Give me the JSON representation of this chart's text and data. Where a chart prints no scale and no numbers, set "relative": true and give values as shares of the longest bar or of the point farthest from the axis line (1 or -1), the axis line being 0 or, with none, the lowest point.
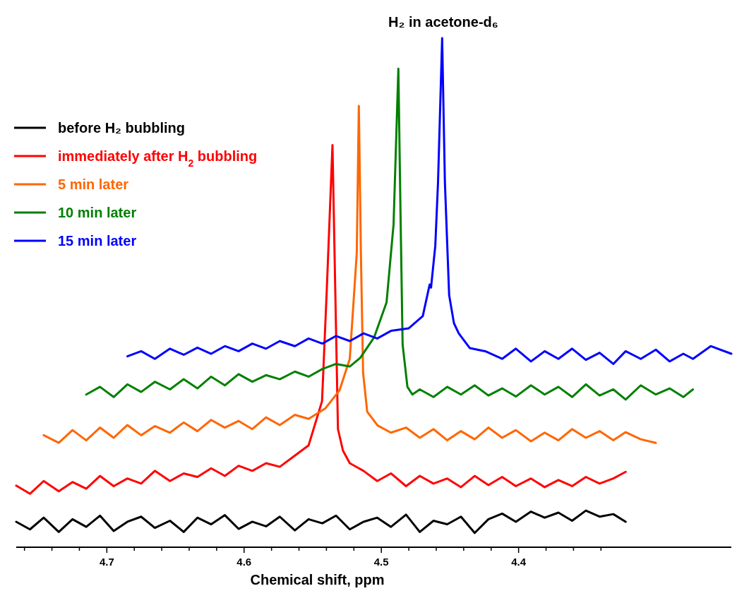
{
  "chart_data": {
    "type": "line",
    "title": "H₂ in acetone-d₆",
    "xlabel": "Chemical shift, ppm",
    "relative": true,
    "legend": "top left",
    "xlim": [
      4.766,
      4.245
    ],
    "xticks": [
      {
        "value": 4.76,
        "label": null
      },
      {
        "value": 4.74,
        "label": null
      },
      {
        "value": 4.72,
        "label": null
      },
      4.7,
      {
        "value": 4.68,
        "label": null
      },
      {
        "value": 4.66,
        "label": null
      },
      {
        "value": 4.64,
        "label": null
      },
      {
        "value": 4.62,
        "label": null
      },
      4.6,
      {
        "value": 4.58,
        "label": null
      },
      {
        "value": 4.56,
        "label": null
      },
      {
        "value": 4.54,
        "label": null
      },
      {
        "value": 4.52,
        "label": null
      },
      4.5,
      {
        "value": 4.48,
        "label": null
      },
      {
        "value": 4.46,
        "label": null
      },
      {
        "value": 4.44,
        "label": null
      },
      {
        "value": 4.42,
        "label": null
      },
      4.4,
      {
        "value": 4.38,
        "label": null
      },
      {
        "value": 4.36,
        "label": null
      },
      {
        "value": 4.34,
        "label": null
      }
    ],
    "series": [
      {
        "name": "before H₂ bubbling",
        "color": "#000000",
        "x": [
          4.766,
          4.756,
          4.746,
          4.735,
          4.725,
          4.715,
          4.705,
          4.695,
          4.685,
          4.675,
          4.665,
          4.654,
          4.644,
          4.634,
          4.624,
          4.614,
          4.604,
          4.594,
          4.584,
          4.574,
          4.563,
          4.553,
          4.543,
          4.533,
          4.523,
          4.513,
          4.503,
          4.493,
          4.482,
          4.472,
          4.462,
          4.452,
          4.442,
          4.432,
          4.422,
          4.412,
          4.402,
          4.391,
          4.381,
          4.371,
          4.361,
          4.351,
          4.341,
          4.331,
          4.322
        ],
        "values": [
          0.05,
          0.035,
          0.058,
          0.03,
          0.055,
          0.04,
          0.062,
          0.032,
          0.05,
          0.06,
          0.038,
          0.052,
          0.03,
          0.058,
          0.045,
          0.063,
          0.036,
          0.05,
          0.041,
          0.06,
          0.033,
          0.055,
          0.047,
          0.062,
          0.035,
          0.05,
          0.058,
          0.04,
          0.064,
          0.03,
          0.052,
          0.045,
          0.06,
          0.028,
          0.055,
          0.066,
          0.05,
          0.07,
          0.058,
          0.068,
          0.052,
          0.072,
          0.06,
          0.065,
          0.05
        ]
      },
      {
        "name": "immediately after H$_{2}$ bubbling",
        "color": "#ff0000",
        "x": [
          4.766,
          4.756,
          4.746,
          4.735,
          4.725,
          4.715,
          4.705,
          4.695,
          4.685,
          4.675,
          4.665,
          4.654,
          4.644,
          4.634,
          4.624,
          4.614,
          4.604,
          4.594,
          4.584,
          4.574,
          4.563,
          4.553,
          4.5432,
          4.5397,
          4.5356,
          4.5336,
          4.5316,
          4.528,
          4.523,
          4.513,
          4.503,
          4.493,
          4.482,
          4.472,
          4.462,
          4.452,
          4.442,
          4.432,
          4.422,
          4.412,
          4.402,
          4.391,
          4.381,
          4.371,
          4.361,
          4.351,
          4.341,
          4.331,
          4.322
        ],
        "values": [
          0.121,
          0.105,
          0.13,
          0.11,
          0.128,
          0.115,
          0.14,
          0.12,
          0.135,
          0.125,
          0.15,
          0.13,
          0.145,
          0.138,
          0.155,
          0.14,
          0.16,
          0.15,
          0.165,
          0.158,
          0.18,
          0.2,
          0.287,
          0.509,
          0.79,
          0.509,
          0.232,
          0.19,
          0.165,
          0.15,
          0.13,
          0.145,
          0.12,
          0.14,
          0.125,
          0.135,
          0.118,
          0.14,
          0.122,
          0.138,
          0.12,
          0.135,
          0.118,
          0.132,
          0.12,
          0.138,
          0.125,
          0.135,
          0.148
        ]
      },
      {
        "name": "5 min later",
        "color": "#ff6600",
        "x": [
          4.746,
          4.735,
          4.725,
          4.715,
          4.705,
          4.695,
          4.685,
          4.675,
          4.665,
          4.654,
          4.644,
          4.634,
          4.624,
          4.614,
          4.604,
          4.594,
          4.584,
          4.574,
          4.563,
          4.553,
          4.5407,
          4.5305,
          4.523,
          4.5179,
          4.5164,
          4.5149,
          4.5133,
          4.5103,
          4.5027,
          4.493,
          4.482,
          4.472,
          4.462,
          4.452,
          4.442,
          4.432,
          4.422,
          4.412,
          4.402,
          4.391,
          4.381,
          4.371,
          4.361,
          4.351,
          4.341,
          4.331,
          4.322,
          4.311,
          4.3
        ],
        "values": [
          0.22,
          0.205,
          0.23,
          0.21,
          0.235,
          0.215,
          0.24,
          0.22,
          0.238,
          0.225,
          0.245,
          0.228,
          0.25,
          0.235,
          0.248,
          0.232,
          0.255,
          0.24,
          0.26,
          0.252,
          0.273,
          0.308,
          0.37,
          0.578,
          0.867,
          0.578,
          0.343,
          0.266,
          0.239,
          0.225,
          0.235,
          0.215,
          0.232,
          0.21,
          0.228,
          0.212,
          0.235,
          0.215,
          0.23,
          0.208,
          0.225,
          0.21,
          0.232,
          0.215,
          0.228,
          0.21,
          0.226,
          0.212,
          0.205
        ]
      },
      {
        "name": "10 min later",
        "color": "#008000",
        "x": [
          4.715,
          4.705,
          4.695,
          4.685,
          4.675,
          4.665,
          4.654,
          4.644,
          4.634,
          4.624,
          4.614,
          4.604,
          4.594,
          4.584,
          4.574,
          4.563,
          4.553,
          4.543,
          4.533,
          4.523,
          4.5154,
          4.5053,
          4.4962,
          4.4911,
          4.4876,
          4.486,
          4.4845,
          4.481,
          4.4774,
          4.472,
          4.462,
          4.452,
          4.442,
          4.432,
          4.422,
          4.412,
          4.402,
          4.391,
          4.381,
          4.371,
          4.361,
          4.351,
          4.341,
          4.331,
          4.322,
          4.311,
          4.3,
          4.29,
          4.28,
          4.273
        ],
        "values": [
          0.3,
          0.315,
          0.295,
          0.32,
          0.305,
          0.325,
          0.31,
          0.33,
          0.312,
          0.335,
          0.318,
          0.34,
          0.325,
          0.338,
          0.33,
          0.345,
          0.335,
          0.35,
          0.36,
          0.355,
          0.372,
          0.412,
          0.481,
          0.634,
          0.94,
          0.65,
          0.398,
          0.315,
          0.3,
          0.31,
          0.295,
          0.315,
          0.3,
          0.318,
          0.298,
          0.312,
          0.296,
          0.318,
          0.3,
          0.315,
          0.295,
          0.32,
          0.298,
          0.31,
          0.29,
          0.318,
          0.3,
          0.312,
          0.295,
          0.31
        ]
      },
      {
        "name": "15 min later",
        "color": "#0000ff",
        "x": [
          4.685,
          4.675,
          4.665,
          4.654,
          4.644,
          4.634,
          4.624,
          4.614,
          4.604,
          4.594,
          4.584,
          4.574,
          4.563,
          4.553,
          4.543,
          4.533,
          4.523,
          4.513,
          4.503,
          4.493,
          4.48,
          4.4698,
          4.4648,
          4.4638,
          4.4607,
          4.4587,
          4.4557,
          4.4537,
          4.4506,
          4.4471,
          4.4436,
          4.4355,
          4.4243,
          4.412,
          4.402,
          4.391,
          4.381,
          4.371,
          4.361,
          4.351,
          4.341,
          4.331,
          4.322,
          4.311,
          4.3,
          4.29,
          4.28,
          4.273,
          4.26,
          4.245
        ],
        "values": [
          0.375,
          0.385,
          0.37,
          0.39,
          0.378,
          0.392,
          0.38,
          0.395,
          0.385,
          0.4,
          0.39,
          0.405,
          0.395,
          0.41,
          0.4,
          0.415,
          0.405,
          0.42,
          0.41,
          0.425,
          0.43,
          0.454,
          0.516,
          0.51,
          0.592,
          0.717,
          1.0,
          0.717,
          0.495,
          0.44,
          0.42,
          0.391,
          0.385,
          0.37,
          0.39,
          0.365,
          0.385,
          0.37,
          0.39,
          0.368,
          0.382,
          0.36,
          0.385,
          0.37,
          0.388,
          0.365,
          0.38,
          0.37,
          0.395,
          0.38
        ]
      }
    ]
  }
}
